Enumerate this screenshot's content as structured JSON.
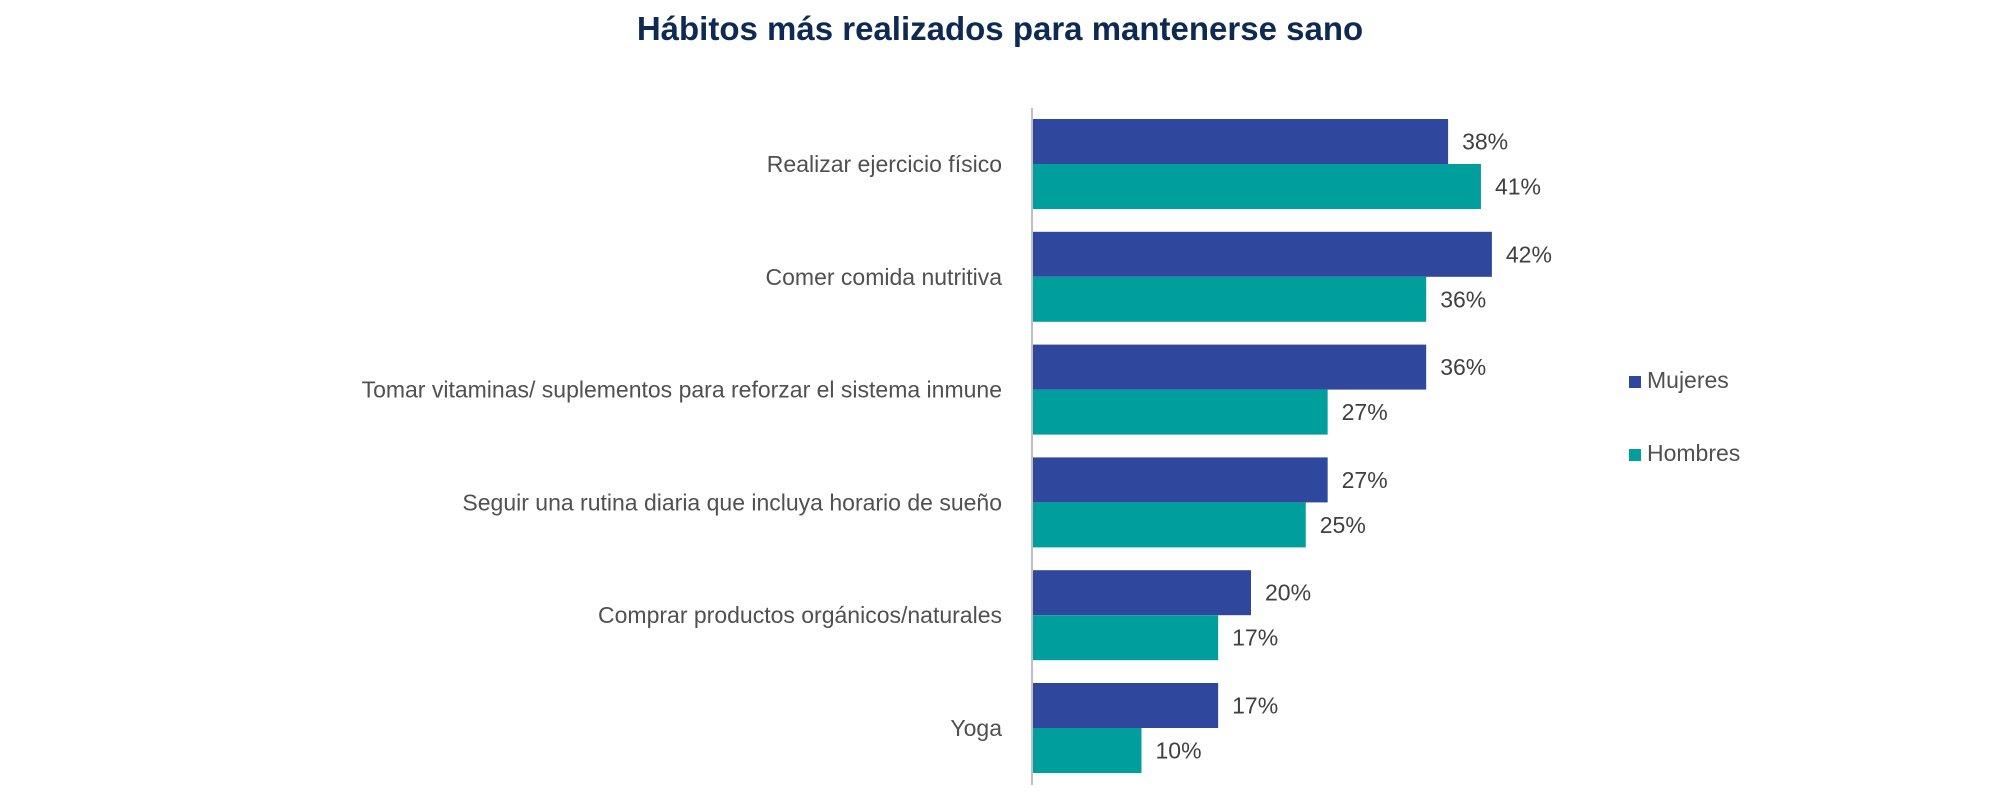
{
  "chart_data": {
    "type": "bar",
    "orientation": "horizontal",
    "title": "Hábitos más realizados para mantenerse sano",
    "categories": [
      "Realizar ejercicio físico",
      "Comer comida nutritiva",
      "Tomar vitaminas/ suplementos para reforzar el sistema inmune",
      "Seguir una rutina diaria que incluya horario de sueño",
      "Comprar productos orgánicos/naturales",
      "Yoga"
    ],
    "series": [
      {
        "name": "Mujeres",
        "color": "#30479e",
        "values": [
          38,
          42,
          36,
          27,
          20,
          17
        ],
        "labels": [
          "38%",
          "42%",
          "36%",
          "27%",
          "20%",
          "17%"
        ]
      },
      {
        "name": "Hombres",
        "color": "#009f9d",
        "values": [
          41,
          36,
          27,
          25,
          17,
          10
        ],
        "labels": [
          "41%",
          "36%",
          "27%",
          "25%",
          "17%",
          "10%"
        ]
      }
    ],
    "value_unit": "%",
    "xlim": [
      0,
      42
    ],
    "grid": false,
    "legend_position": "right"
  }
}
